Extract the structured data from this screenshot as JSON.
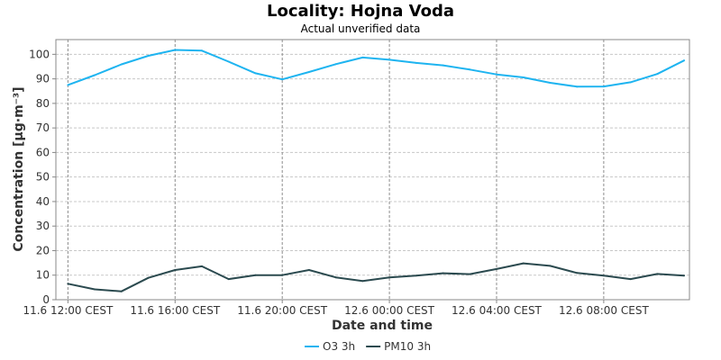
{
  "chart_data": {
    "type": "line",
    "title": "Locality: Hojna Voda",
    "subtitle": "Actual unverified data",
    "xlabel": "Date and time",
    "ylabel": "Concentration [µg·m⁻³]",
    "ylim": [
      0,
      106
    ],
    "yticks": [
      0,
      10,
      20,
      30,
      40,
      50,
      60,
      70,
      80,
      90,
      100
    ],
    "xlim": [
      -0.45,
      23.2
    ],
    "xticks": [
      {
        "x": 0,
        "label": "11.6 12:00 CEST"
      },
      {
        "x": 4,
        "label": "11.6 16:00 CEST"
      },
      {
        "x": 8,
        "label": "11.6 20:00 CEST"
      },
      {
        "x": 12,
        "label": "12.6 00:00 CEST"
      },
      {
        "x": 16,
        "label": "12.6 04:00 CEST"
      },
      {
        "x": 20,
        "label": "12.6 08:00 CEST"
      }
    ],
    "grid": true,
    "legend_position": "bottom-center",
    "x": [
      0,
      1,
      2,
      3,
      4,
      5,
      6,
      7,
      8,
      9,
      10,
      11,
      12,
      13,
      14,
      15,
      16,
      17,
      18,
      19,
      20,
      21,
      22,
      23
    ],
    "series": [
      {
        "name": "O3 3h",
        "color": "#1eb4f0",
        "values": [
          87.5,
          91.5,
          95.9,
          99.4,
          101.8,
          101.5,
          97.0,
          92.3,
          89.8,
          92.8,
          96.0,
          98.7,
          97.8,
          96.5,
          95.5,
          93.8,
          91.8,
          90.6,
          88.4,
          86.8,
          86.9,
          88.6,
          92.0,
          97.5
        ]
      },
      {
        "name": "PM10 3h",
        "color": "#2b4a4f",
        "values": [
          6.5,
          4.2,
          3.4,
          8.9,
          12.1,
          13.6,
          8.4,
          10.0,
          10.0,
          12.1,
          9.1,
          7.6,
          9.1,
          9.8,
          10.8,
          10.4,
          12.5,
          14.8,
          13.8,
          10.9,
          9.8,
          8.4,
          10.5,
          9.8
        ]
      }
    ]
  }
}
